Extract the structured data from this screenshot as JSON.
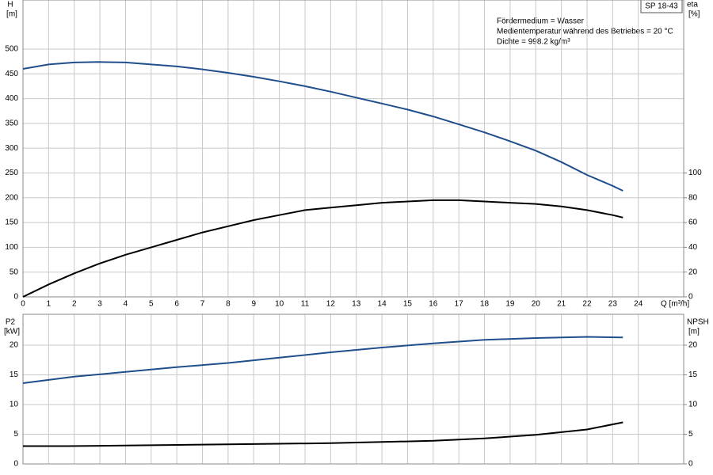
{
  "chart_data": [
    {
      "type": "line",
      "model": "SP 18-43",
      "annotations": [
        "Fördermedium = Wasser",
        "Medientemperatur während des Betriebes = 20 °C",
        "Dichte = 998.2 kg/m³"
      ],
      "ylabel": "H",
      "yunit": "[m]",
      "y2label": "eta",
      "y2unit": "[%]",
      "xlabel": "Q [m³/h]",
      "xlim": [
        0,
        25.77
      ],
      "xticks": [
        0,
        1,
        2,
        3,
        4,
        5,
        6,
        7,
        8,
        9,
        10,
        11,
        12,
        13,
        14,
        15,
        16,
        17,
        18,
        19,
        20,
        21,
        22,
        23,
        24
      ],
      "ylim": [
        0,
        599
      ],
      "yticks": [
        0,
        50,
        100,
        150,
        200,
        250,
        300,
        350,
        400,
        450,
        500
      ],
      "y2lim": [
        0,
        239.6
      ],
      "y2ticks": [
        0,
        20,
        40,
        60,
        80,
        100
      ],
      "grid": true,
      "series": [
        {
          "name": "H",
          "color": "#1f4e8c",
          "x": [
            0,
            1,
            2,
            3,
            4,
            5,
            6,
            7,
            8,
            9,
            10,
            11,
            12,
            13,
            14,
            15,
            16,
            17,
            18,
            19,
            20,
            21,
            22,
            23,
            23.4
          ],
          "values": [
            460,
            469,
            473,
            474,
            473,
            469,
            465,
            459,
            452,
            444,
            435,
            425,
            414,
            402,
            390,
            378,
            364,
            348,
            332,
            314,
            295,
            272,
            246,
            224,
            214
          ]
        },
        {
          "name": "eta",
          "color": "#000000",
          "axis": "y2",
          "x": [
            0,
            1,
            2,
            3,
            4,
            5,
            6,
            7,
            8,
            9,
            10,
            11,
            12,
            13,
            14,
            15,
            16,
            17,
            18,
            19,
            20,
            21,
            22,
            23,
            23.4
          ],
          "values": [
            0,
            10,
            19,
            27,
            34,
            40,
            46,
            52,
            57,
            62,
            66,
            70,
            72,
            74,
            76,
            77,
            78,
            78,
            77,
            76,
            75,
            73,
            70,
            66,
            64
          ]
        }
      ]
    },
    {
      "type": "line",
      "ylabel": "P2",
      "yunit": "[kW]",
      "y2label": "NPSH",
      "y2unit": "[m]",
      "ylim": [
        0,
        25.2
      ],
      "yticks": [
        0,
        5,
        10,
        15,
        20
      ],
      "y2lim": [
        0,
        25.2
      ],
      "y2ticks": [
        0,
        5,
        10,
        15,
        20
      ],
      "grid": true,
      "series": [
        {
          "name": "P2",
          "color": "#1f4e8c",
          "x": [
            0,
            2,
            4,
            6,
            8,
            10,
            12,
            14,
            16,
            18,
            20,
            22,
            23.4
          ],
          "values": [
            13.6,
            14.7,
            15.5,
            16.3,
            17.0,
            17.9,
            18.8,
            19.6,
            20.3,
            20.9,
            21.2,
            21.4,
            21.3
          ]
        },
        {
          "name": "NPSH",
          "color": "#000000",
          "axis": "y2",
          "x": [
            0,
            1.7,
            4,
            6,
            8,
            10,
            12,
            14,
            16,
            18,
            20,
            22,
            23.4
          ],
          "values": [
            3.0,
            3.0,
            3.1,
            3.2,
            3.3,
            3.4,
            3.5,
            3.7,
            3.9,
            4.3,
            4.9,
            5.8,
            7.0
          ]
        }
      ]
    }
  ]
}
